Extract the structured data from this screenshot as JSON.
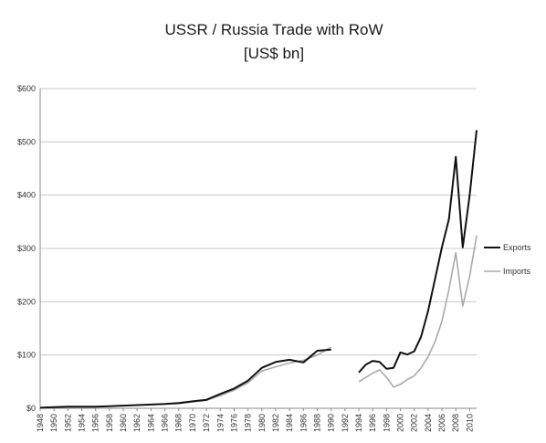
{
  "chart_data": {
    "type": "line",
    "title": "USSR / Russia Trade with RoW",
    "subtitle": "[US$ bn]",
    "xlabel": "",
    "ylabel": "",
    "ylim": [
      0,
      600
    ],
    "xlim": [
      1948,
      2011
    ],
    "y_ticks": [
      0,
      100,
      200,
      300,
      400,
      500,
      600
    ],
    "y_tick_labels": [
      "$0",
      "$100",
      "$200",
      "$300",
      "$400",
      "$500",
      "$600"
    ],
    "x_ticks": [
      1948,
      1950,
      1952,
      1954,
      1956,
      1958,
      1960,
      1962,
      1964,
      1966,
      1968,
      1970,
      1972,
      1974,
      1976,
      1978,
      1980,
      1982,
      1984,
      1986,
      1988,
      1990,
      1992,
      1994,
      1996,
      1998,
      2000,
      2002,
      2004,
      2006,
      2008,
      2010
    ],
    "x_tick_labels": [
      "1948",
      "1950",
      "1952",
      "1954",
      "1956",
      "1958",
      "1960",
      "1962",
      "1964",
      "1966",
      "1968",
      "1970",
      "1972",
      "1974",
      "1976",
      "1978",
      "1980",
      "1982",
      "1984",
      "1986",
      "1988",
      "1990",
      "1992",
      "1994",
      "1996",
      "1998",
      "2000",
      "2002",
      "2004",
      "2006",
      "2008",
      "2010"
    ],
    "grid": true,
    "legend_position": "right",
    "series": [
      {
        "name": "Exports",
        "color": "#111111",
        "segments": [
          {
            "x": [
              1948,
              1950,
              1952,
              1954,
              1956,
              1958,
              1960,
              1962,
              1964,
              1966,
              1968,
              1970,
              1972,
              1974,
              1976,
              1978,
              1980,
              1982,
              1984,
              1986,
              1988,
              1990
            ],
            "y": [
              1,
              2,
              3,
              3,
              3,
              4,
              5,
              6,
              7,
              8,
              10,
              13,
              16,
              27,
              37,
              52,
              76,
              87,
              91,
              86,
              108,
              110
            ]
          },
          {
            "x": [
              1994,
              1995,
              1996,
              1997,
              1998,
              1999,
              2000,
              2001,
              2002,
              2003,
              2004,
              2005,
              2006,
              2007,
              2008,
              2009,
              2010,
              2011
            ],
            "y": [
              67,
              82,
              89,
              87,
              74,
              76,
              105,
              101,
              107,
              135,
              183,
              243,
              303,
              355,
              472,
              302,
              400,
              522
            ]
          }
        ]
      },
      {
        "name": "Imports",
        "color": "#aaaaaa",
        "segments": [
          {
            "x": [
              1948,
              1950,
              1952,
              1954,
              1956,
              1958,
              1960,
              1962,
              1964,
              1966,
              1968,
              1970,
              1972,
              1974,
              1976,
              1978,
              1980,
              1982,
              1984,
              1986,
              1988,
              1990
            ],
            "y": [
              1,
              2,
              3,
              3,
              3,
              4,
              5,
              6,
              7,
              8,
              9,
              12,
              15,
              24,
              34,
              48,
              70,
              78,
              85,
              90,
              100,
              115
            ]
          },
          {
            "x": [
              1994,
              1995,
              1996,
              1997,
              1998,
              1999,
              2000,
              2001,
              2002,
              2003,
              2004,
              2005,
              2006,
              2007,
              2008,
              2009,
              2010,
              2011
            ],
            "y": [
              50,
              58,
              66,
              72,
              58,
              40,
              45,
              54,
              61,
              76,
              97,
              125,
              164,
              223,
              292,
              192,
              248,
              324
            ]
          }
        ]
      }
    ]
  }
}
